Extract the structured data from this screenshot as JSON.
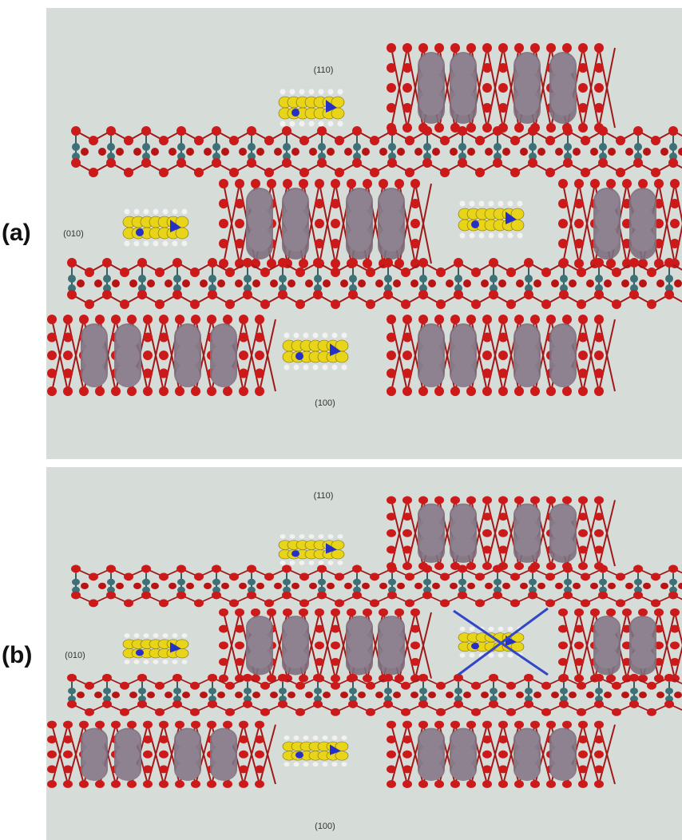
{
  "panels": [
    {
      "label": "(a)",
      "planes": {
        "top": "(110)",
        "left": "(010)",
        "bottom": "(100)"
      }
    },
    {
      "label": "(b)",
      "planes": {
        "top": "(110)",
        "left": "(010)",
        "bottom": "(100)"
      }
    }
  ]
}
